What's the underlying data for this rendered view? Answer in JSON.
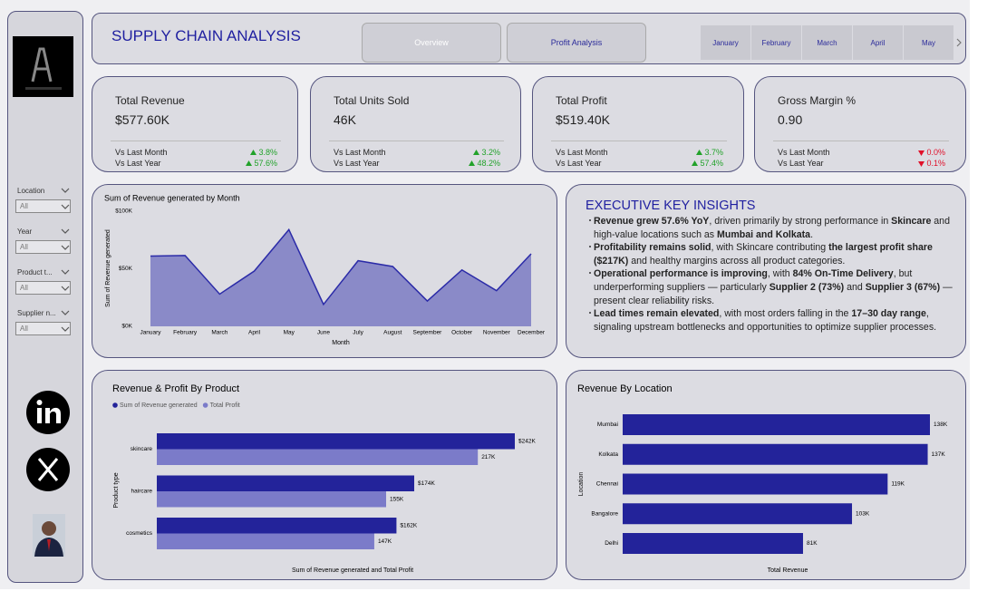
{
  "header": {
    "title": "SUPPLY CHAIN ANALYSIS",
    "buttons": [
      "Overview",
      "Profit Analysis"
    ],
    "months": [
      "January",
      "February",
      "March",
      "April",
      "May"
    ]
  },
  "slicers": [
    {
      "label": "Location",
      "value": "All"
    },
    {
      "label": "Year",
      "value": "All"
    },
    {
      "label": "Product t...",
      "value": "All"
    },
    {
      "label": "Supplier n...",
      "value": "All"
    }
  ],
  "trend_colors": {
    "up": "#22a22a",
    "down": "#e0102a"
  },
  "kpis": [
    {
      "title": "Total Revenue",
      "value": "$577.60K",
      "rows": [
        {
          "label": "Vs Last Month",
          "change": "3.8%",
          "trend": "up"
        },
        {
          "label": "Vs Last Year",
          "change": "57.6%",
          "trend": "up"
        }
      ]
    },
    {
      "title": "Total Units Sold",
      "value": "46K",
      "rows": [
        {
          "label": "Vs Last Month",
          "change": "3.2%",
          "trend": "up"
        },
        {
          "label": "Vs Last Year",
          "change": "48.2%",
          "trend": "up"
        }
      ]
    },
    {
      "title": "Total Profit",
      "value": "$519.40K",
      "rows": [
        {
          "label": "Vs Last Month",
          "change": "3.7%",
          "trend": "up"
        },
        {
          "label": "Vs Last Year",
          "change": "57.4%",
          "trend": "up"
        }
      ]
    },
    {
      "title": "Gross Margin %",
      "value": "0.90",
      "rows": [
        {
          "label": "Vs Last Month",
          "change": "0.0%",
          "trend": "down"
        },
        {
          "label": "Vs Last Year",
          "change": "0.1%",
          "trend": "down"
        }
      ]
    }
  ],
  "insights": {
    "title": "EXECUTIVE KEY INSIGHTS",
    "bullets": [
      [
        {
          "text": "Revenue grew 57.6% YoY",
          "bold": true
        },
        {
          "text": ", driven primarily by strong performance in "
        },
        {
          "text": "Skincare",
          "bold": true
        },
        {
          "text": " and high-value locations such as "
        },
        {
          "text": "Mumbai and Kolkata",
          "bold": true
        },
        {
          "text": "."
        }
      ],
      [
        {
          "text": "Profitability remains solid",
          "bold": true
        },
        {
          "text": ", with Skincare contributing "
        },
        {
          "text": "the largest profit share ($217K)",
          "bold": true
        },
        {
          "text": " and healthy margins across all product categories."
        }
      ],
      [
        {
          "text": "Operational performance is improving",
          "bold": true
        },
        {
          "text": ", with "
        },
        {
          "text": "84% On-Time Delivery",
          "bold": true
        },
        {
          "text": ", but underperforming suppliers — particularly "
        },
        {
          "text": "Supplier 2 (73%)",
          "bold": true
        },
        {
          "text": " and "
        },
        {
          "text": "Supplier 3 (67%)",
          "bold": true
        },
        {
          "text": " — present clear reliability risks."
        }
      ],
      [
        {
          "text": "Lead times remain elevated",
          "bold": true
        },
        {
          "text": ", with most orders falling in the "
        },
        {
          "text": "17–30 day range",
          "bold": true
        },
        {
          "text": ", signaling upstream bottlenecks and opportunities to optimize supplier processes."
        }
      ]
    ]
  },
  "chart_data": [
    {
      "type": "area",
      "title": "Sum of Revenue generated by Month",
      "x_label": "Month",
      "y_label": "Sum of Revenue generated",
      "categories": [
        "January",
        "February",
        "March",
        "April",
        "May",
        "June",
        "July",
        "August",
        "September",
        "October",
        "November",
        "December"
      ],
      "values": [
        61000,
        61500,
        28000,
        48000,
        84000,
        19000,
        57000,
        52000,
        22000,
        49000,
        31000,
        63000
      ],
      "color": "#2b2ba8",
      "fill": "#8a8ac8",
      "ylim": [
        0,
        100000
      ],
      "yticks": [
        {
          "value": 0,
          "label": "$0K"
        },
        {
          "value": 50000,
          "label": "$50K"
        },
        {
          "value": 100000,
          "label": "$100K"
        }
      ]
    },
    {
      "type": "bar",
      "orientation": "horizontal",
      "title": "Revenue & Profit By Product",
      "x_label": "Sum of Revenue generated and Total Profit",
      "y_label": "Product type",
      "categories": [
        "skincare",
        "haircare",
        "cosmetics"
      ],
      "series": [
        {
          "name": "Sum of Revenue generated",
          "color": "#23239a",
          "values": [
            242000,
            174000,
            162000
          ],
          "value_labels": [
            "$242K",
            "$174K",
            "$162K"
          ]
        },
        {
          "name": "Total Profit",
          "color": "#7b7bc9",
          "values": [
            217000,
            155000,
            147000
          ],
          "value_labels": [
            "217K",
            "155K",
            "147K"
          ]
        }
      ]
    },
    {
      "type": "bar",
      "orientation": "horizontal",
      "title": "Revenue By Location",
      "x_label": "Total Revenue",
      "y_label": "Location",
      "categories": [
        "Mumbai",
        "Kolkata",
        "Chennai",
        "Bangalore",
        "Delhi"
      ],
      "color": "#23239a",
      "values": [
        138000,
        137000,
        119000,
        103000,
        81000
      ],
      "value_labels": [
        "138K",
        "137K",
        "119K",
        "103K",
        "81K"
      ]
    }
  ]
}
